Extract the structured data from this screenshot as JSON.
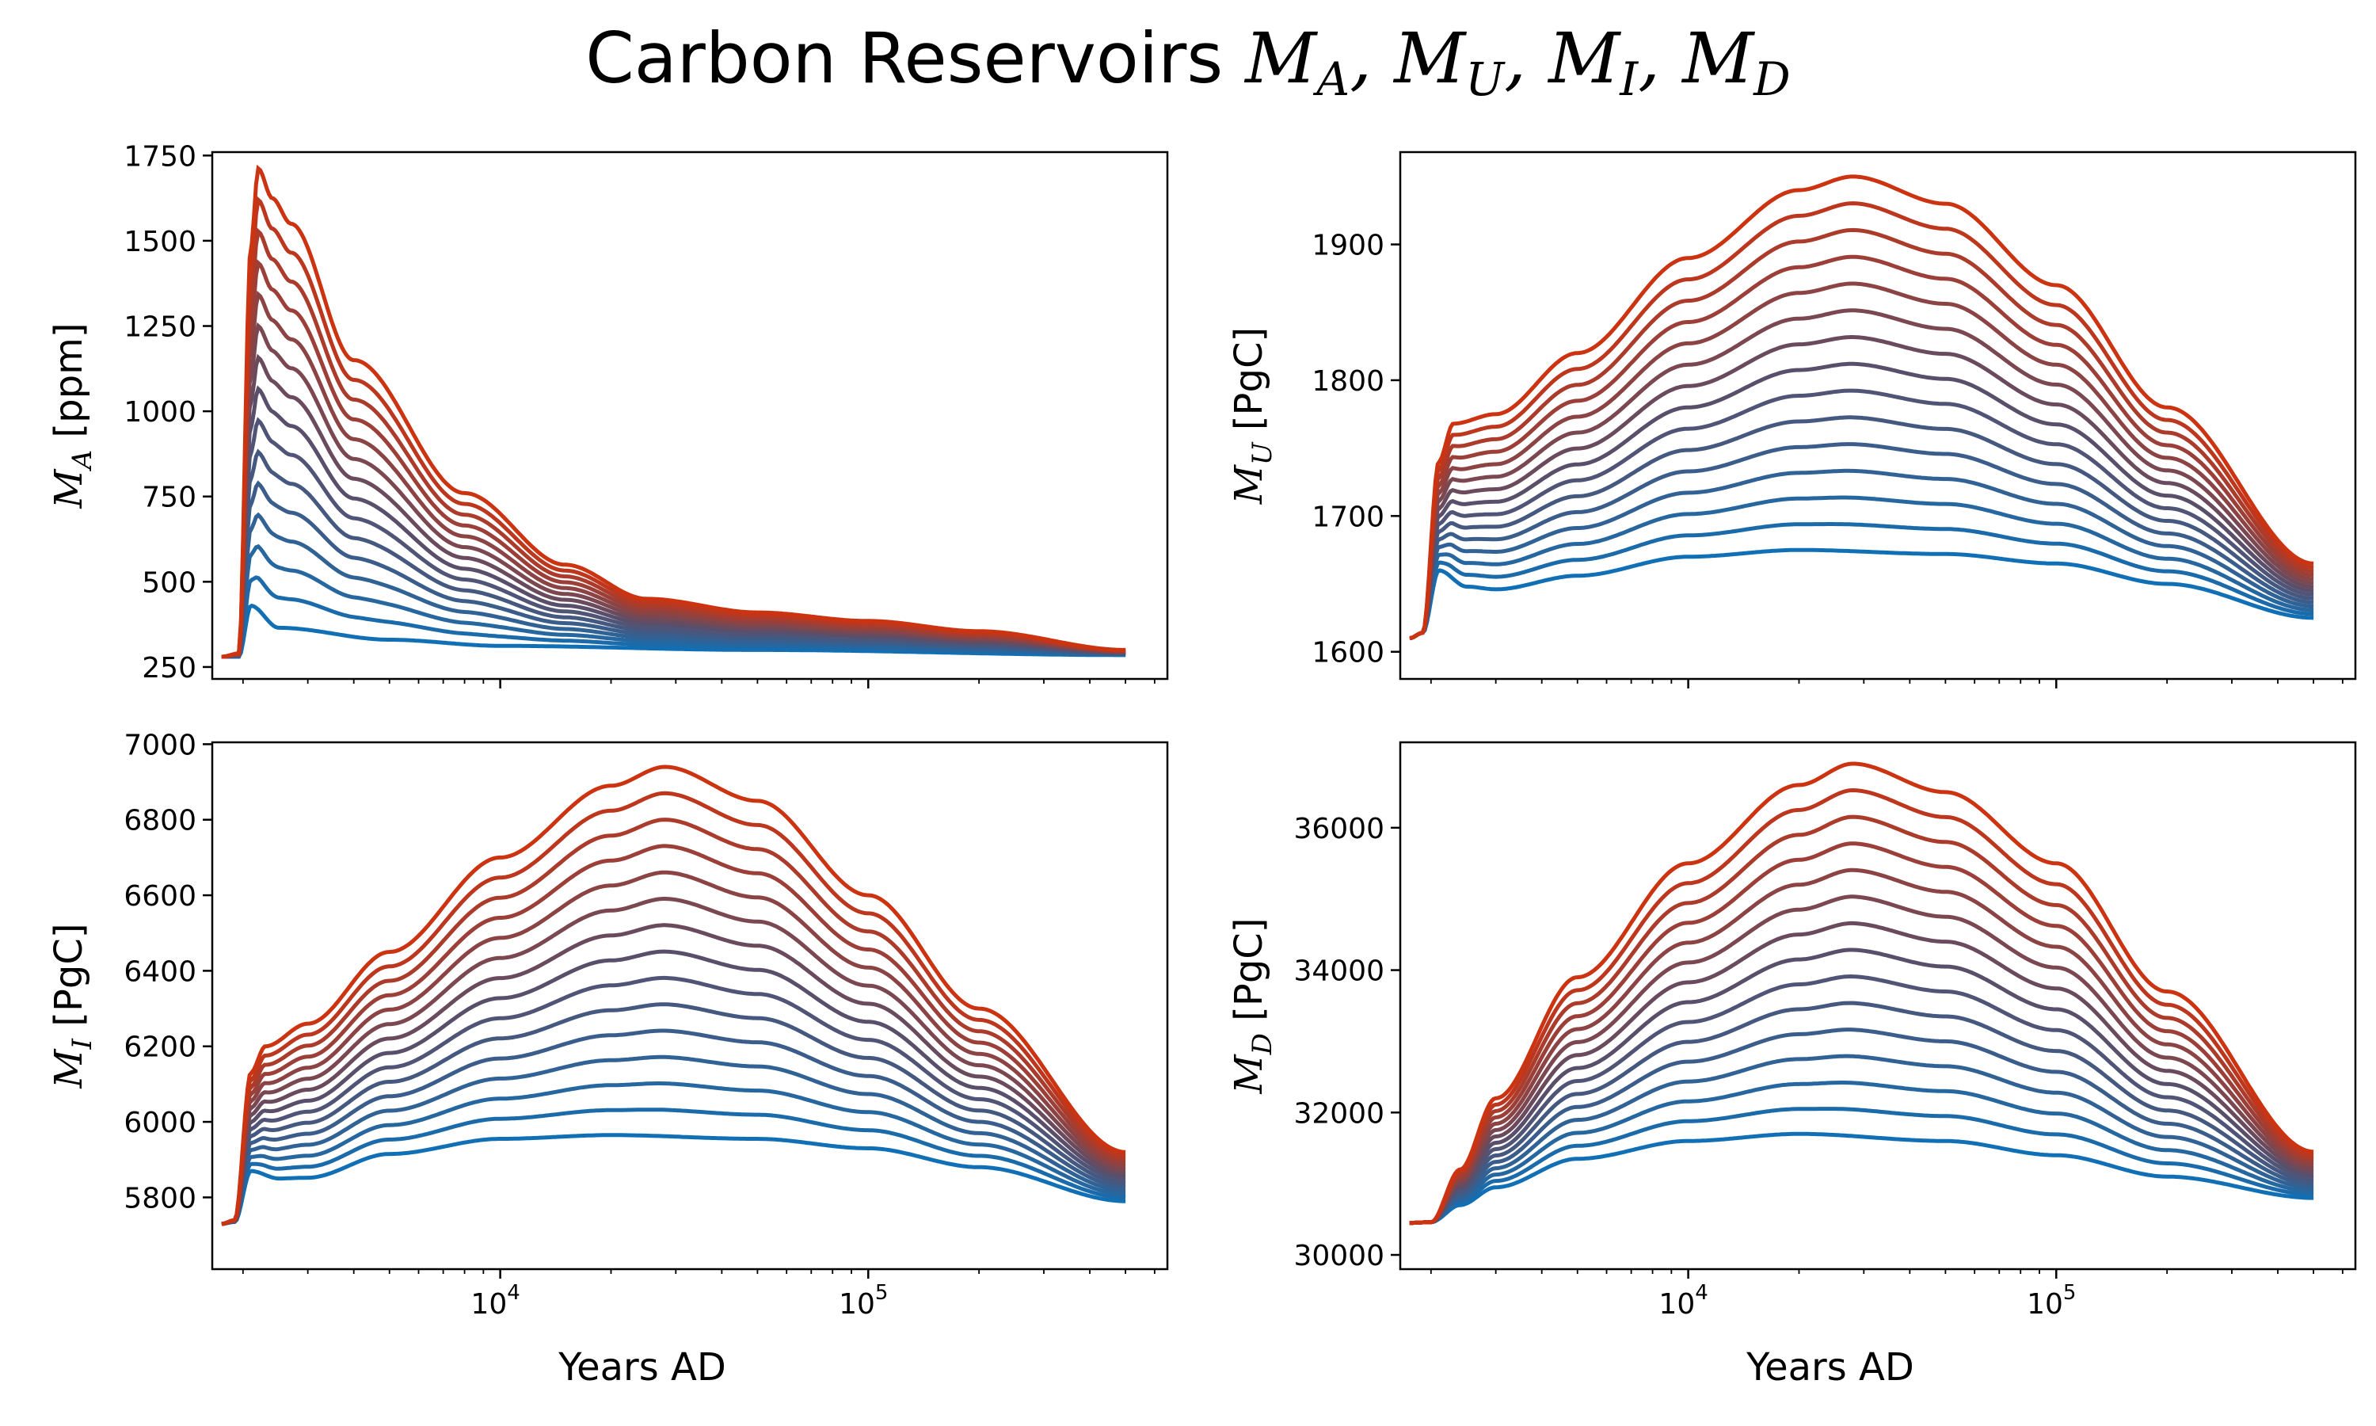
{
  "title": {
    "prefix": "Carbon Reservoirs ",
    "math": [
      "A",
      "U",
      "I",
      "D"
    ],
    "symbol": "M"
  },
  "colors": {
    "low": "#1170b5",
    "mid": "#5a4f6b",
    "high": "#cc3311"
  },
  "chart_data": [
    {
      "type": "line",
      "name": "M_A",
      "ylabel_symbol": "M",
      "ylabel_sub": "A",
      "ylabel_unit": " [ppm]",
      "xlabel": "",
      "xscale": "log",
      "xlim": [
        1650,
        650000
      ],
      "ylim": [
        215,
        1760
      ],
      "yticks": [
        250,
        500,
        750,
        1000,
        1250,
        1500,
        1750
      ],
      "xticks": [
        10000,
        100000
      ],
      "xtick_labels": [
        [
          "10",
          "4"
        ],
        [
          "10",
          "5"
        ]
      ],
      "num_series": 15,
      "series_low": [
        1750,
        280,
        1950,
        280,
        2100,
        430,
        2500,
        365,
        5000,
        330,
        10000,
        312,
        50000,
        300,
        500000,
        285
      ],
      "series_high": [
        1750,
        280,
        1950,
        290,
        2100,
        1480,
        2200,
        1712,
        2400,
        1625,
        2700,
        1550,
        4000,
        1150,
        8000,
        760,
        15000,
        550,
        25000,
        450,
        50000,
        410,
        100000,
        385,
        200000,
        355,
        500000,
        300
      ]
    },
    {
      "type": "line",
      "name": "M_U",
      "ylabel_symbol": "M",
      "ylabel_sub": "U",
      "ylabel_unit": " [PgC]",
      "xlabel": "",
      "xscale": "log",
      "xlim": [
        1650,
        650000
      ],
      "ylim": [
        1580,
        1968
      ],
      "yticks": [
        1600,
        1700,
        1800,
        1900
      ],
      "xticks": [
        10000,
        100000
      ],
      "xtick_labels": [
        [
          "10",
          "4"
        ],
        [
          "10",
          "5"
        ]
      ],
      "num_series": 15,
      "series_low": [
        1750,
        1610,
        1900,
        1614,
        2100,
        1660,
        2500,
        1648,
        3000,
        1646,
        5000,
        1656,
        10000,
        1670,
        20000,
        1675,
        50000,
        1672,
        100000,
        1665,
        200000,
        1650,
        500000,
        1625
      ],
      "series_high": [
        1750,
        1610,
        1900,
        1614,
        2100,
        1740,
        2300,
        1768,
        3000,
        1775,
        5000,
        1820,
        10000,
        1890,
        20000,
        1940,
        28000,
        1950,
        50000,
        1930,
        100000,
        1870,
        200000,
        1780,
        500000,
        1665
      ]
    },
    {
      "type": "line",
      "name": "M_I",
      "ylabel_symbol": "M",
      "ylabel_sub": "I",
      "ylabel_unit": " [PgC]",
      "xlabel": "Years AD",
      "xscale": "log",
      "xlim": [
        1650,
        650000
      ],
      "ylim": [
        5610,
        7005
      ],
      "yticks": [
        5800,
        6000,
        6200,
        6400,
        6600,
        6800,
        7000
      ],
      "xticks": [
        10000,
        100000
      ],
      "xtick_labels": [
        [
          "10",
          "4"
        ],
        [
          "10",
          "5"
        ]
      ],
      "num_series": 15,
      "series_low": [
        1750,
        5730,
        1900,
        5735,
        2100,
        5870,
        2500,
        5850,
        3000,
        5852,
        5000,
        5915,
        10000,
        5955,
        20000,
        5965,
        50000,
        5955,
        100000,
        5930,
        200000,
        5880,
        500000,
        5790
      ],
      "series_high": [
        1750,
        5730,
        1900,
        5740,
        2100,
        6130,
        2300,
        6200,
        3000,
        6260,
        5000,
        6450,
        10000,
        6700,
        20000,
        6890,
        28000,
        6940,
        50000,
        6850,
        100000,
        6600,
        200000,
        6300,
        500000,
        5920
      ]
    },
    {
      "type": "line",
      "name": "M_D",
      "ylabel_symbol": "M",
      "ylabel_sub": "D",
      "ylabel_unit": " [PgC]",
      "xlabel": "Years AD",
      "xscale": "log",
      "xlim": [
        1650,
        650000
      ],
      "ylim": [
        29800,
        37200
      ],
      "yticks": [
        30000,
        32000,
        34000,
        36000
      ],
      "xticks": [
        10000,
        100000
      ],
      "xtick_labels": [
        [
          "10",
          "4"
        ],
        [
          "10",
          "5"
        ]
      ],
      "num_series": 15,
      "series_low": [
        1750,
        30450,
        2000,
        30460,
        2400,
        30700,
        3000,
        30950,
        5000,
        31350,
        10000,
        31600,
        20000,
        31700,
        50000,
        31600,
        100000,
        31400,
        200000,
        31100,
        500000,
        30800
      ],
      "series_high": [
        1750,
        30450,
        2000,
        30460,
        2400,
        31200,
        3000,
        32200,
        5000,
        33900,
        10000,
        35500,
        20000,
        36600,
        28000,
        36900,
        50000,
        36500,
        100000,
        35500,
        200000,
        33700,
        500000,
        31450
      ]
    }
  ]
}
